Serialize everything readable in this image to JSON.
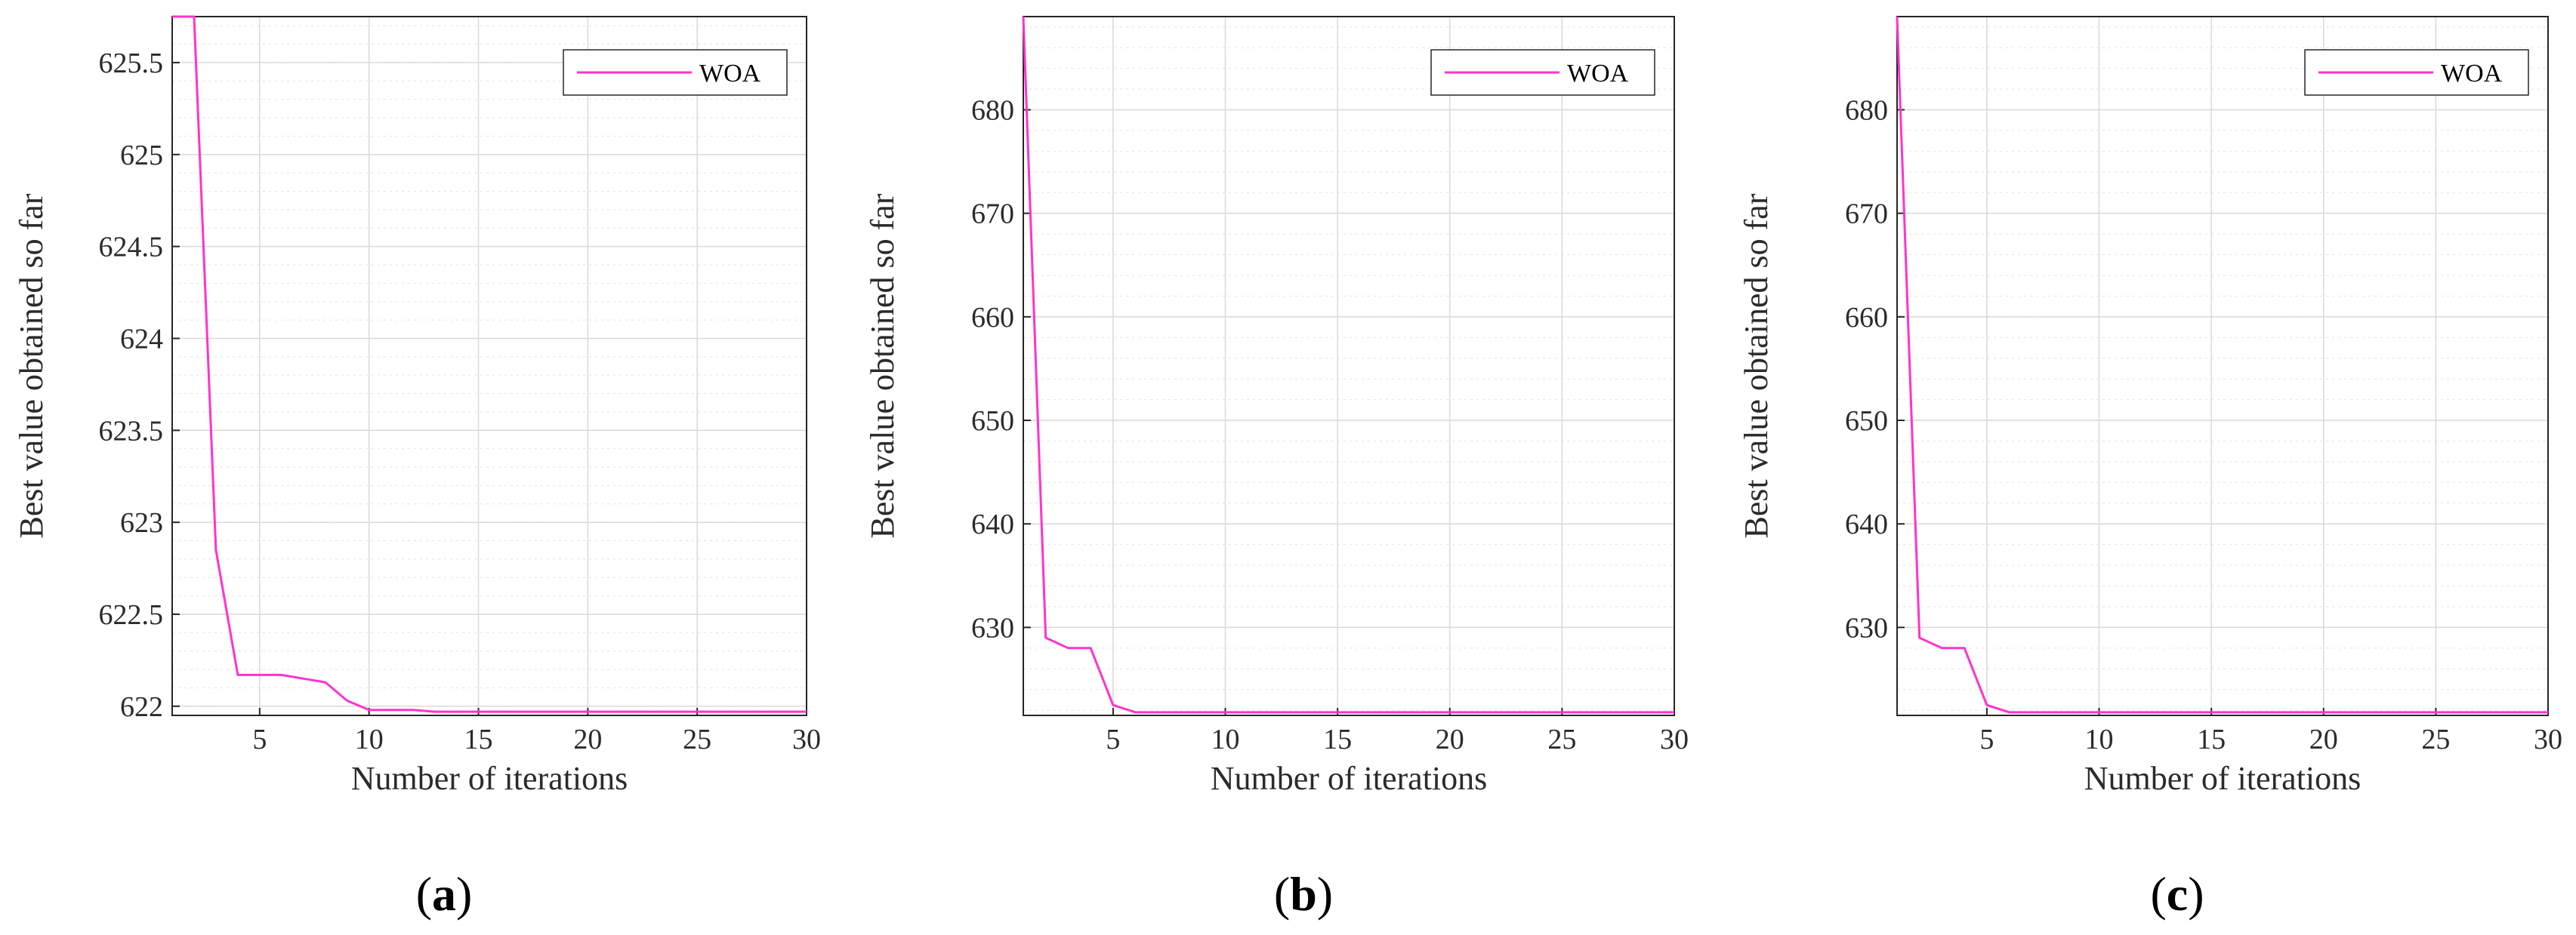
{
  "colors": {
    "series": "#ff33cc",
    "axes": "#262626",
    "text": "#2b2b2b",
    "grid": "#d9d9d9"
  },
  "chart_data": [
    {
      "id": "a",
      "type": "line",
      "caption": "a",
      "xlabel": "Number of iterations",
      "ylabel": "Best value obtained so far",
      "xlim": [
        1,
        30
      ],
      "ylim": [
        621.95,
        625.75
      ],
      "xticks": [
        5,
        10,
        15,
        20,
        25,
        30
      ],
      "yticks": [
        622,
        622.5,
        623,
        623.5,
        624,
        624.5,
        625,
        625.5
      ],
      "ytick_labels": [
        "622",
        "622.5",
        "623",
        "623.5",
        "624",
        "624.5",
        "625",
        "625.5"
      ],
      "yminor_step": 0.1,
      "legend": {
        "entries": [
          "WOA"
        ],
        "location": "top-right"
      },
      "grid": true,
      "series": [
        {
          "name": "WOA",
          "color": "#ff33cc",
          "x": [
            1,
            2,
            3,
            4,
            5,
            6,
            7,
            8,
            9,
            10,
            11,
            12,
            13,
            14,
            15,
            16,
            17,
            18,
            19,
            20,
            21,
            22,
            23,
            24,
            25,
            26,
            27,
            28,
            29,
            30
          ],
          "y": [
            625.75,
            625.75,
            622.85,
            622.17,
            622.17,
            622.17,
            622.15,
            622.13,
            622.03,
            621.98,
            621.98,
            621.98,
            621.97,
            621.97,
            621.97,
            621.97,
            621.97,
            621.97,
            621.97,
            621.97,
            621.97,
            621.97,
            621.97,
            621.97,
            621.97,
            621.97,
            621.97,
            621.97,
            621.97,
            621.97
          ]
        }
      ]
    },
    {
      "id": "b",
      "type": "line",
      "caption": "b",
      "xlabel": "Number of iterations",
      "ylabel": "Best value obtained so far",
      "xlim": [
        1,
        30
      ],
      "ylim": [
        621.5,
        689
      ],
      "xticks": [
        5,
        10,
        15,
        20,
        25,
        30
      ],
      "yticks": [
        630,
        640,
        650,
        660,
        670,
        680
      ],
      "ytick_labels": [
        "630",
        "640",
        "650",
        "660",
        "670",
        "680"
      ],
      "yminor_step": 2,
      "legend": {
        "entries": [
          "WOA"
        ],
        "location": "top-right"
      },
      "grid": true,
      "series": [
        {
          "name": "WOA",
          "color": "#ff33cc",
          "x": [
            1,
            2,
            3,
            4,
            5,
            6,
            7,
            8,
            9,
            10,
            11,
            12,
            13,
            14,
            15,
            16,
            17,
            18,
            19,
            20,
            21,
            22,
            23,
            24,
            25,
            26,
            27,
            28,
            29,
            30
          ],
          "y": [
            689,
            629,
            628,
            628,
            622.5,
            621.8,
            621.8,
            621.8,
            621.8,
            621.8,
            621.8,
            621.8,
            621.8,
            621.8,
            621.8,
            621.8,
            621.8,
            621.8,
            621.8,
            621.8,
            621.8,
            621.8,
            621.8,
            621.8,
            621.8,
            621.8,
            621.8,
            621.8,
            621.8,
            621.8
          ]
        }
      ]
    },
    {
      "id": "c",
      "type": "line",
      "caption": "c",
      "xlabel": "Number of iterations",
      "ylabel": "Best value obtained so far",
      "xlim": [
        1,
        30
      ],
      "ylim": [
        621.5,
        689
      ],
      "xticks": [
        5,
        10,
        15,
        20,
        25,
        30
      ],
      "yticks": [
        630,
        640,
        650,
        660,
        670,
        680
      ],
      "ytick_labels": [
        "630",
        "640",
        "650",
        "660",
        "670",
        "680"
      ],
      "yminor_step": 2,
      "legend": {
        "entries": [
          "WOA"
        ],
        "location": "top-right"
      },
      "grid": true,
      "series": [
        {
          "name": "WOA",
          "color": "#ff33cc",
          "x": [
            1,
            2,
            3,
            4,
            5,
            6,
            7,
            8,
            9,
            10,
            11,
            12,
            13,
            14,
            15,
            16,
            17,
            18,
            19,
            20,
            21,
            22,
            23,
            24,
            25,
            26,
            27,
            28,
            29,
            30
          ],
          "y": [
            689,
            629,
            628,
            628,
            622.5,
            621.8,
            621.8,
            621.8,
            621.8,
            621.8,
            621.8,
            621.8,
            621.8,
            621.8,
            621.8,
            621.8,
            621.8,
            621.8,
            621.8,
            621.8,
            621.8,
            621.8,
            621.8,
            621.8,
            621.8,
            621.8,
            621.8,
            621.8,
            621.8,
            621.8
          ]
        }
      ]
    }
  ]
}
